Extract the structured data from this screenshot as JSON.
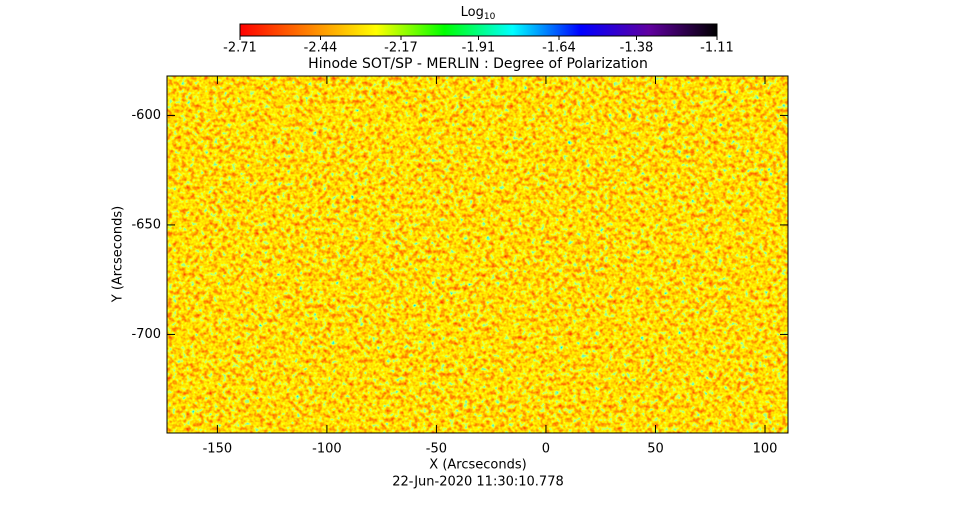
{
  "chart_data": {
    "type": "image",
    "title": "Hinode SOT/SP - MERLIN : Degree of Polarization",
    "xlabel": "X (Arcseconds)",
    "ylabel": "Y (Arcseconds)",
    "date": "22-Jun-2020 11:30:10.778",
    "xlim": [
      -173,
      110.5
    ],
    "ylim": [
      -745,
      -582
    ],
    "xticks": [
      -150,
      -100,
      -50,
      0,
      50,
      100
    ],
    "yticks": [
      -600,
      -650,
      -700
    ],
    "colorbar": {
      "label": "Log",
      "label_sub": "10",
      "clim": [
        -2.71,
        -1.11
      ],
      "ticks": [
        -2.71,
        -2.44,
        -2.17,
        -1.91,
        -1.64,
        -1.38,
        -1.11
      ],
      "colormap": [
        "#ff0000",
        "#ff8000",
        "#ffff00",
        "#00ff00",
        "#00ffff",
        "#0000ff",
        "#6000a0",
        "#000000"
      ]
    }
  }
}
